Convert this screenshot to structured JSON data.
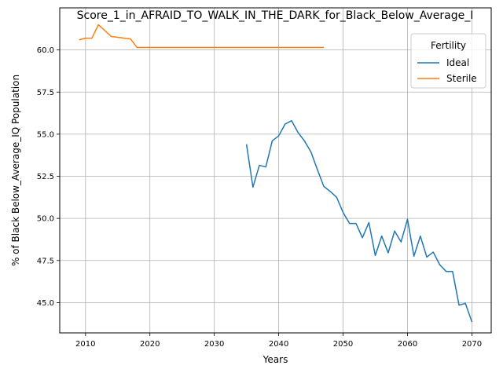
{
  "chart_data": {
    "type": "line",
    "title": "Score_1_in_AFRAID_TO_WALK_IN_THE_DARK_for_Black_Below_Average_I",
    "xlabel": "Years",
    "ylabel": "% of Black Below_Average_IQ Population",
    "xlim": [
      2006,
      2073
    ],
    "ylim": [
      43.2,
      62.5
    ],
    "xticks": [
      2010,
      2020,
      2030,
      2040,
      2050,
      2060,
      2070
    ],
    "xtick_labels": [
      "2010",
      "2020",
      "2030",
      "2040",
      "2050",
      "2060",
      "2070"
    ],
    "yticks": [
      45.0,
      47.5,
      50.0,
      52.5,
      55.0,
      57.5,
      60.0
    ],
    "ytick_labels": [
      "45.0",
      "47.5",
      "50.0",
      "52.5",
      "55.0",
      "57.5",
      "60.0"
    ],
    "grid": true,
    "legend": {
      "title": "Fertility",
      "placement": "top-right"
    },
    "series": [
      {
        "name": "Ideal",
        "color": "#1f77b4",
        "x": [
          2035,
          2036,
          2037,
          2038,
          2039,
          2040,
          2041,
          2042,
          2043,
          2044,
          2045,
          2046,
          2047,
          2048,
          2049,
          2050,
          2051,
          2052,
          2053,
          2054,
          2055,
          2056,
          2057,
          2058,
          2059,
          2060,
          2061,
          2062,
          2063,
          2064,
          2065,
          2066,
          2067,
          2068,
          2069,
          2070
        ],
        "y": [
          54.4,
          51.85,
          53.15,
          53.05,
          54.6,
          54.9,
          55.6,
          55.8,
          55.1,
          54.6,
          53.95,
          52.9,
          51.9,
          51.6,
          51.25,
          50.35,
          49.7,
          49.7,
          48.85,
          49.75,
          47.8,
          48.95,
          47.95,
          49.25,
          48.6,
          49.95,
          47.75,
          48.95,
          47.7,
          48.0,
          47.25,
          46.85,
          46.85,
          44.85,
          44.95,
          43.85
        ]
      },
      {
        "name": "Sterile",
        "color": "#ff7f0e",
        "x": [
          2009,
          2010,
          2011,
          2012,
          2013,
          2014,
          2015,
          2016,
          2017,
          2018,
          2019,
          2020,
          2025,
          2030,
          2035,
          2040,
          2045,
          2047
        ],
        "y": [
          60.6,
          60.7,
          60.7,
          61.5,
          61.15,
          60.8,
          60.75,
          60.7,
          60.65,
          60.15,
          60.15,
          60.15,
          60.15,
          60.15,
          60.15,
          60.15,
          60.15,
          60.15
        ]
      }
    ]
  }
}
